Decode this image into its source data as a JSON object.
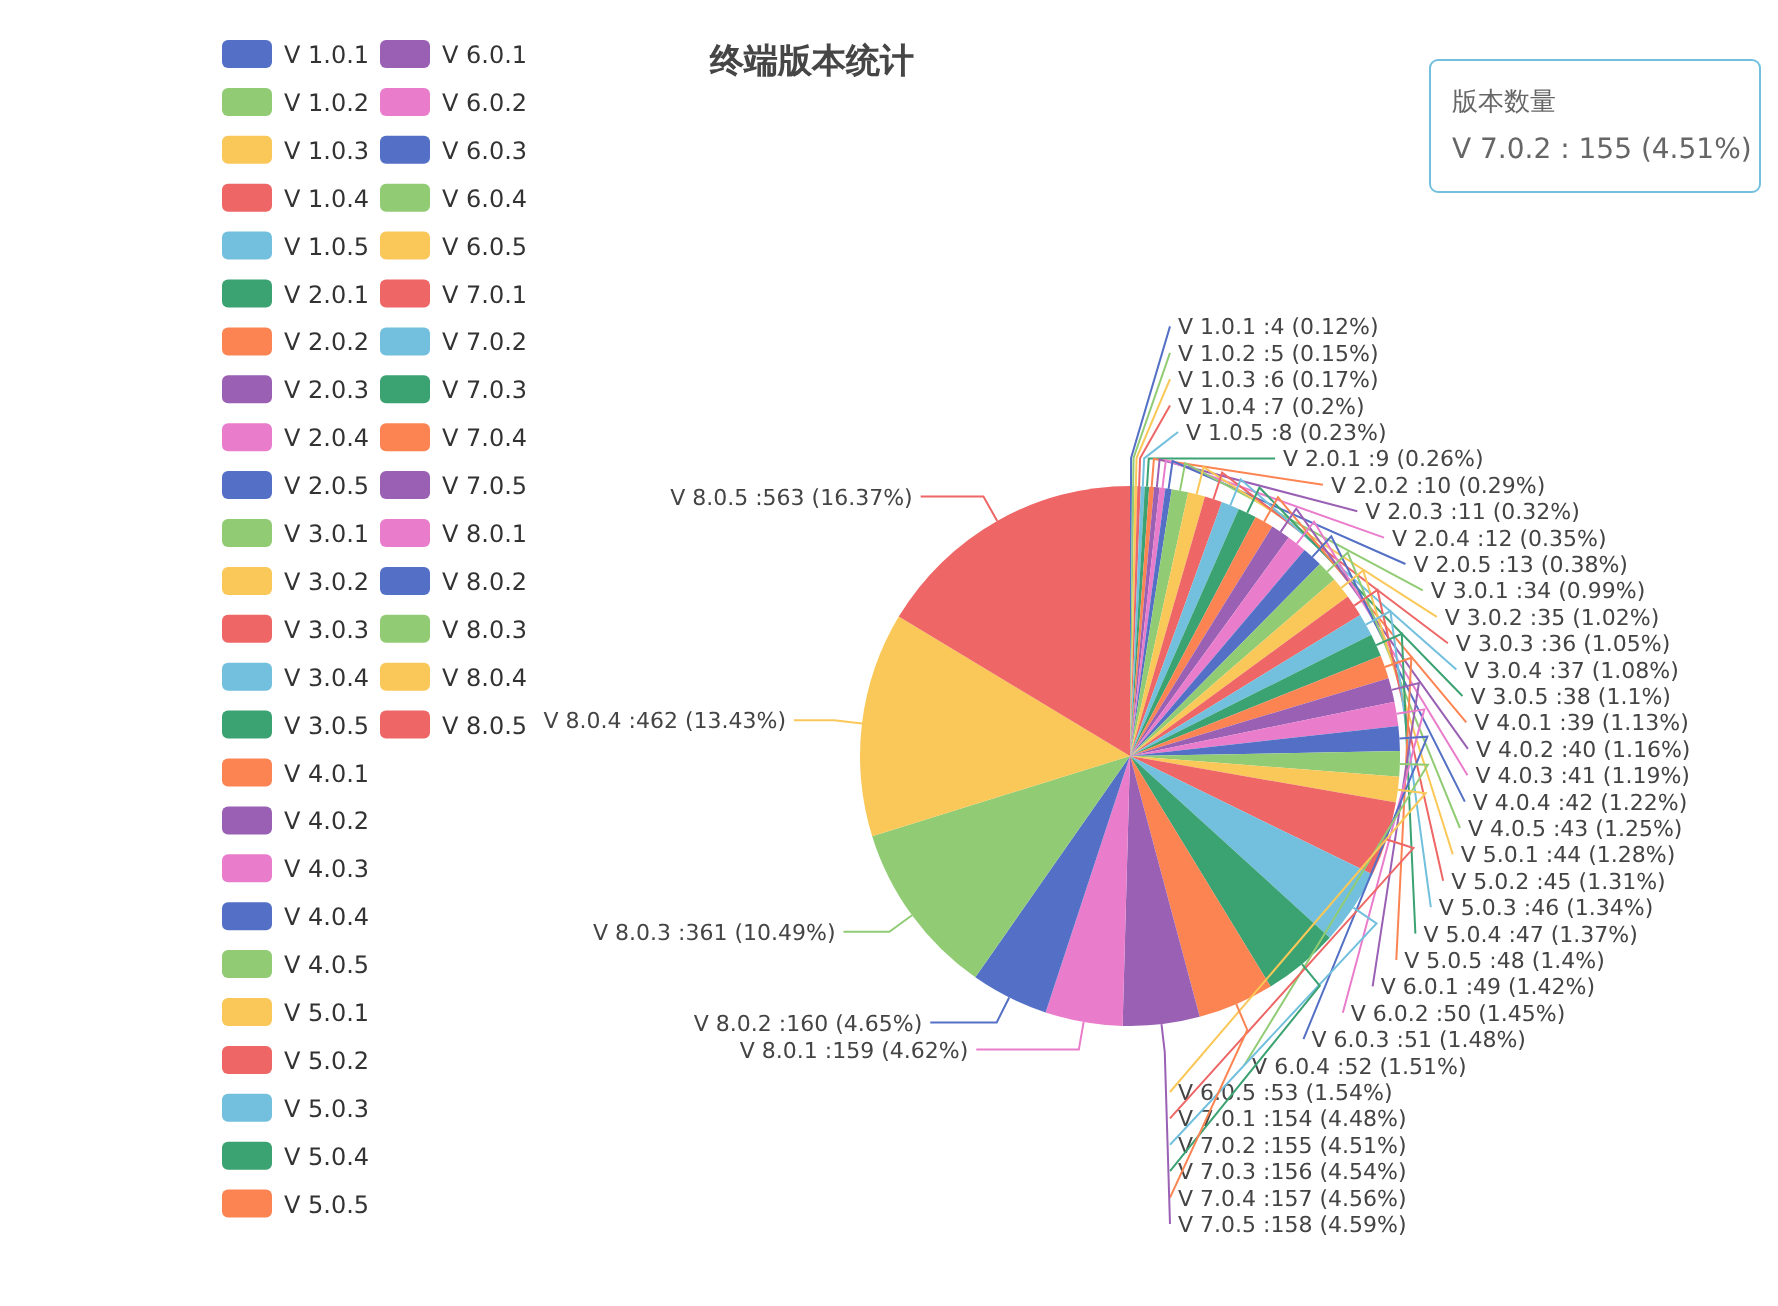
{
  "chart_data": {
    "type": "pie",
    "title": "终端版本统计",
    "categories": [
      "V 1.0.1",
      "V 1.0.2",
      "V 1.0.3",
      "V 1.0.4",
      "V 1.0.5",
      "V 2.0.1",
      "V 2.0.2",
      "V 2.0.3",
      "V 2.0.4",
      "V 2.0.5",
      "V 3.0.1",
      "V 3.0.2",
      "V 3.0.3",
      "V 3.0.4",
      "V 3.0.5",
      "V 4.0.1",
      "V 4.0.2",
      "V 4.0.3",
      "V 4.0.4",
      "V 4.0.5",
      "V 5.0.1",
      "V 5.0.2",
      "V 5.0.3",
      "V 5.0.4",
      "V 5.0.5",
      "V 6.0.1",
      "V 6.0.2",
      "V 6.0.3",
      "V 6.0.4",
      "V 6.0.5",
      "V 7.0.1",
      "V 7.0.2",
      "V 7.0.3",
      "V 7.0.4",
      "V 7.0.5",
      "V 8.0.1",
      "V 8.0.2",
      "V 8.0.3",
      "V 8.0.4",
      "V 8.0.5"
    ],
    "values": [
      4,
      5,
      6,
      7,
      8,
      9,
      10,
      11,
      12,
      13,
      34,
      35,
      36,
      37,
      38,
      39,
      40,
      41,
      42,
      43,
      44,
      45,
      46,
      47,
      48,
      49,
      50,
      51,
      52,
      53,
      154,
      155,
      156,
      157,
      158,
      159,
      160,
      361,
      462,
      563
    ],
    "colors": [
      "#5470c6",
      "#91cc75",
      "#fac858",
      "#ee6666",
      "#73c0de",
      "#3ba272",
      "#fc8452",
      "#9a60b4",
      "#ea7ccc",
      "#5470c6",
      "#91cc75",
      "#fac858",
      "#ee6666",
      "#73c0de",
      "#3ba272",
      "#fc8452",
      "#9a60b4",
      "#ea7ccc",
      "#5470c6",
      "#91cc75",
      "#fac858",
      "#ee6666",
      "#73c0de",
      "#3ba272",
      "#fc8452",
      "#9a60b4",
      "#ea7ccc",
      "#5470c6",
      "#91cc75",
      "#fac858",
      "#ee6666",
      "#73c0de",
      "#3ba272",
      "#fc8452",
      "#9a60b4",
      "#ea7ccc",
      "#5470c6",
      "#91cc75",
      "#fac858",
      "#ee6666"
    ],
    "value_labels": [
      "V 1.0.1 :4 (0.12%)",
      "V 1.0.2 :5 (0.15%)",
      "V 1.0.3 :6 (0.17%)",
      "V 1.0.4 :7 (0.2%)",
      "V 1.0.5 :8 (0.23%)",
      "V 2.0.1 :9 (0.26%)",
      "V 2.0.2 :10 (0.29%)",
      "V 2.0.3 :11 (0.32%)",
      "V 2.0.4 :12 (0.35%)",
      "V 2.0.5 :13 (0.38%)",
      "V 3.0.1 :34 (0.99%)",
      "V 3.0.2 :35 (1.02%)",
      "V 3.0.3 :36 (1.05%)",
      "V 3.0.4 :37 (1.08%)",
      "V 3.0.5 :38 (1.1%)",
      "V 4.0.1 :39 (1.13%)",
      "V 4.0.2 :40 (1.16%)",
      "V 4.0.3 :41 (1.19%)",
      "V 4.0.4 :42 (1.22%)",
      "V 4.0.5 :43 (1.25%)",
      "V 5.0.1 :44 (1.28%)",
      "V 5.0.2 :45 (1.31%)",
      "V 5.0.3 :46 (1.34%)",
      "V 5.0.4 :47 (1.37%)",
      "V 5.0.5 :48 (1.4%)",
      "V 6.0.1 :49 (1.42%)",
      "V 6.0.2 :50 (1.45%)",
      "V 6.0.3 :51 (1.48%)",
      "V 6.0.4 :52 (1.51%)",
      "V 6.0.5 :53 (1.54%)",
      "V 7.0.1 :154 (4.48%)",
      "V 7.0.2 :155 (4.51%)",
      "V 7.0.3 :156 (4.54%)",
      "V 7.0.4 :157 (4.56%)",
      "V 7.0.5 :158 (4.59%)",
      "V 8.0.1 :159 (4.62%)",
      "V 8.0.2 :160 (4.65%)",
      "V 8.0.3 :361 (10.49%)",
      "V 8.0.4 :462 (13.43%)",
      "V 8.0.5 :563 (16.37%)"
    ],
    "legend": "top left",
    "annotations": [
      "版本数量",
      "V 7.0.2 : 155 (4.51%)"
    ]
  }
}
